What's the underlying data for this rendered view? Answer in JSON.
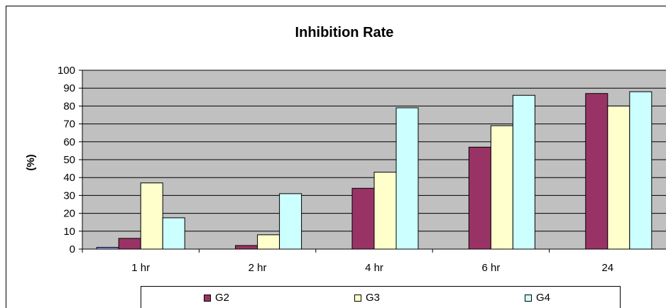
{
  "chart_data": {
    "type": "bar",
    "title": "Inhibition Rate",
    "xlabel": "",
    "ylabel": "(%)",
    "categories": [
      "1 hr",
      "2 hr",
      "4 hr",
      "6 hr",
      "24"
    ],
    "ylim": [
      0,
      100
    ],
    "yticks": [
      0,
      10,
      20,
      30,
      40,
      50,
      60,
      70,
      80,
      90,
      100
    ],
    "grid": true,
    "legend_position": "bottom",
    "plot_background": "#c0c0c0",
    "series": [
      {
        "name": "",
        "values": [
          1,
          0,
          0,
          0,
          0
        ],
        "color": "#9999ff"
      },
      {
        "name": "G2",
        "values": [
          6,
          2,
          34,
          57,
          87
        ],
        "color": "#993366"
      },
      {
        "name": "G3",
        "values": [
          37,
          8,
          43,
          69,
          80
        ],
        "color": "#ffffcc"
      },
      {
        "name": "G4",
        "values": [
          17.5,
          31,
          79,
          86,
          88
        ],
        "color": "#ccffff"
      }
    ]
  }
}
